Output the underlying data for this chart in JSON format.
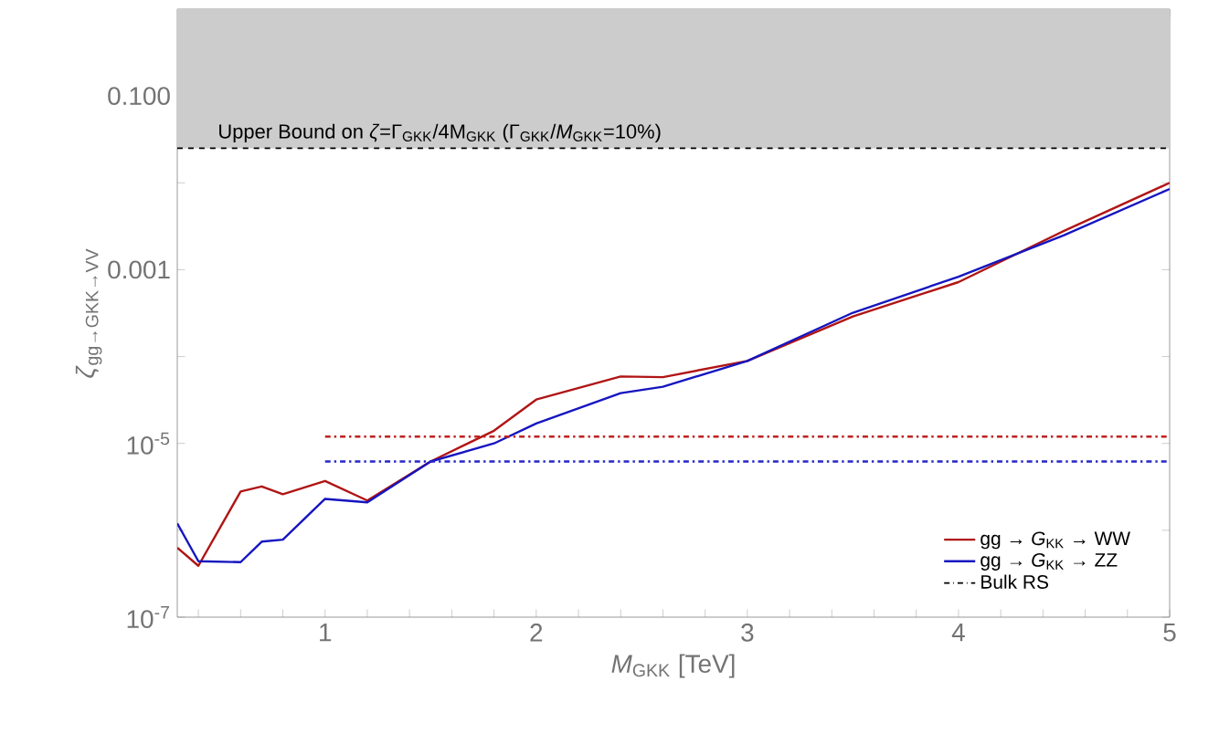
{
  "chart_data": {
    "type": "line",
    "xlabel": "*M*$_{GKK}$ [TeV]",
    "ylabel": "*ζ*$_{gg→GKK→VV}$",
    "log": "y",
    "xlim": [
      0.3,
      5
    ],
    "ylim": [
      1e-07,
      1
    ],
    "xticks": [
      {
        "value": 0.4,
        "label": null
      },
      {
        "value": 0.6,
        "label": null
      },
      {
        "value": 0.8,
        "label": null
      },
      1,
      {
        "value": 1.2,
        "label": null
      },
      {
        "value": 1.4,
        "label": null
      },
      {
        "value": 1.6,
        "label": null
      },
      {
        "value": 1.8,
        "label": null
      },
      2,
      {
        "value": 2.2,
        "label": null
      },
      {
        "value": 2.4,
        "label": null
      },
      {
        "value": 2.6,
        "label": null
      },
      {
        "value": 2.8,
        "label": null
      },
      3,
      {
        "value": 3.2,
        "label": null
      },
      {
        "value": 3.4,
        "label": null
      },
      {
        "value": 3.6,
        "label": null
      },
      {
        "value": 3.8,
        "label": null
      },
      4,
      {
        "value": 4.2,
        "label": null
      },
      {
        "value": 4.4,
        "label": null
      },
      {
        "value": 4.6,
        "label": null
      },
      {
        "value": 4.8,
        "label": null
      },
      5
    ],
    "yticks": [
      {
        "value": 1e-07,
        "label": "10$^{-7}$"
      },
      {
        "value": 1e-06,
        "label": null
      },
      {
        "value": 1e-05,
        "label": "10$^{-5}$"
      },
      {
        "value": 0.0001,
        "label": null
      },
      {
        "value": 0.001,
        "label": "0.001"
      },
      {
        "value": 0.01,
        "label": null
      },
      {
        "value": 0.1,
        "label": "0.100"
      }
    ],
    "x": [
      0.3,
      0.4,
      0.6,
      0.7,
      0.8,
      1.0,
      1.2,
      1.5,
      1.8,
      2.0,
      2.4,
      2.6,
      3.0,
      3.5,
      4.0,
      4.5,
      5.0
    ],
    "series": [
      {
        "name": "gg → *G*$_{KK}$ → WW",
        "color": "#b01515",
        "line_style": "solid",
        "values": [
          6.3e-07,
          3.9e-07,
          2.8e-06,
          3.2e-06,
          2.6e-06,
          3.7e-06,
          2.2e-06,
          6.2e-06,
          1.4e-05,
          3.2e-05,
          5.9e-05,
          5.8e-05,
          8.9e-05,
          0.00029,
          0.00072,
          0.0028,
          0.01
        ]
      },
      {
        "name": "gg → *G*$_{KK}$ → ZZ",
        "color": "#1515c0",
        "line_style": "solid",
        "values": [
          1.2e-06,
          4.4e-07,
          4.3e-07,
          7.4e-07,
          7.8e-07,
          2.3e-06,
          2.1e-06,
          6.2e-06,
          1e-05,
          1.7e-05,
          3.8e-05,
          4.5e-05,
          8.9e-05,
          0.00032,
          0.00083,
          0.0025,
          0.0085
        ]
      },
      {
        "color": "#c02020",
        "line_style": "dashdot",
        "values": [
          null,
          null,
          null,
          null,
          null,
          1.2e-05,
          1.2e-05,
          1.2e-05,
          1.2e-05,
          1.2e-05,
          1.2e-05,
          1.2e-05,
          1.2e-05,
          1.2e-05,
          1.2e-05,
          1.2e-05,
          1.2e-05
        ]
      },
      {
        "color": "#2525c8",
        "line_style": "dashdot",
        "values": [
          null,
          null,
          null,
          null,
          null,
          6.2e-06,
          6.2e-06,
          6.2e-06,
          6.2e-06,
          6.2e-06,
          6.2e-06,
          6.2e-06,
          6.2e-06,
          6.2e-06,
          6.2e-06,
          6.2e-06,
          6.2e-06
        ]
      }
    ],
    "bands": [
      {
        "axis": "y",
        "from": 0.025,
        "to": 1,
        "color": "#cccccc"
      }
    ],
    "ref_lines": [
      {
        "axis": "y",
        "value": 0.025,
        "line_style": "dashed",
        "color": "#000000"
      }
    ],
    "annotations": [
      "Bulk RS",
      "Upper Bound on *ζ*=Γ$_{GKK}$/4M$_{GKK}$   (Γ$_{GKK}$/*M*$_{GKK}$=10%)"
    ],
    "legend": "bottom right"
  }
}
